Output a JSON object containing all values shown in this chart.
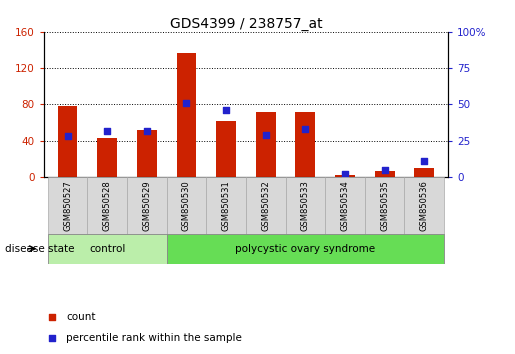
{
  "title": "GDS4399 / 238757_at",
  "samples": [
    "GSM850527",
    "GSM850528",
    "GSM850529",
    "GSM850530",
    "GSM850531",
    "GSM850532",
    "GSM850533",
    "GSM850534",
    "GSM850535",
    "GSM850536"
  ],
  "counts": [
    78,
    43,
    52,
    137,
    62,
    72,
    72,
    2,
    7,
    10
  ],
  "percentiles": [
    28,
    32,
    32,
    51,
    46,
    29,
    33,
    2,
    5,
    11
  ],
  "left_ylim": [
    0,
    160
  ],
  "right_ylim": [
    0,
    100
  ],
  "left_yticks": [
    0,
    40,
    80,
    120,
    160
  ],
  "right_yticks": [
    0,
    25,
    50,
    75,
    100
  ],
  "right_yticklabels": [
    "0",
    "25",
    "50",
    "75",
    "100%"
  ],
  "bar_color": "#cc2200",
  "percentile_color": "#2222cc",
  "control_color": "#bbeeaa",
  "pcos_color": "#66dd55",
  "label_bg_color": "#d8d8d8",
  "control_indices": [
    0,
    1,
    2
  ],
  "pcos_indices": [
    3,
    4,
    5,
    6,
    7,
    8,
    9
  ],
  "legend_count_label": "count",
  "legend_percentile_label": "percentile rank within the sample",
  "disease_state_label": "disease state",
  "bar_width": 0.5
}
